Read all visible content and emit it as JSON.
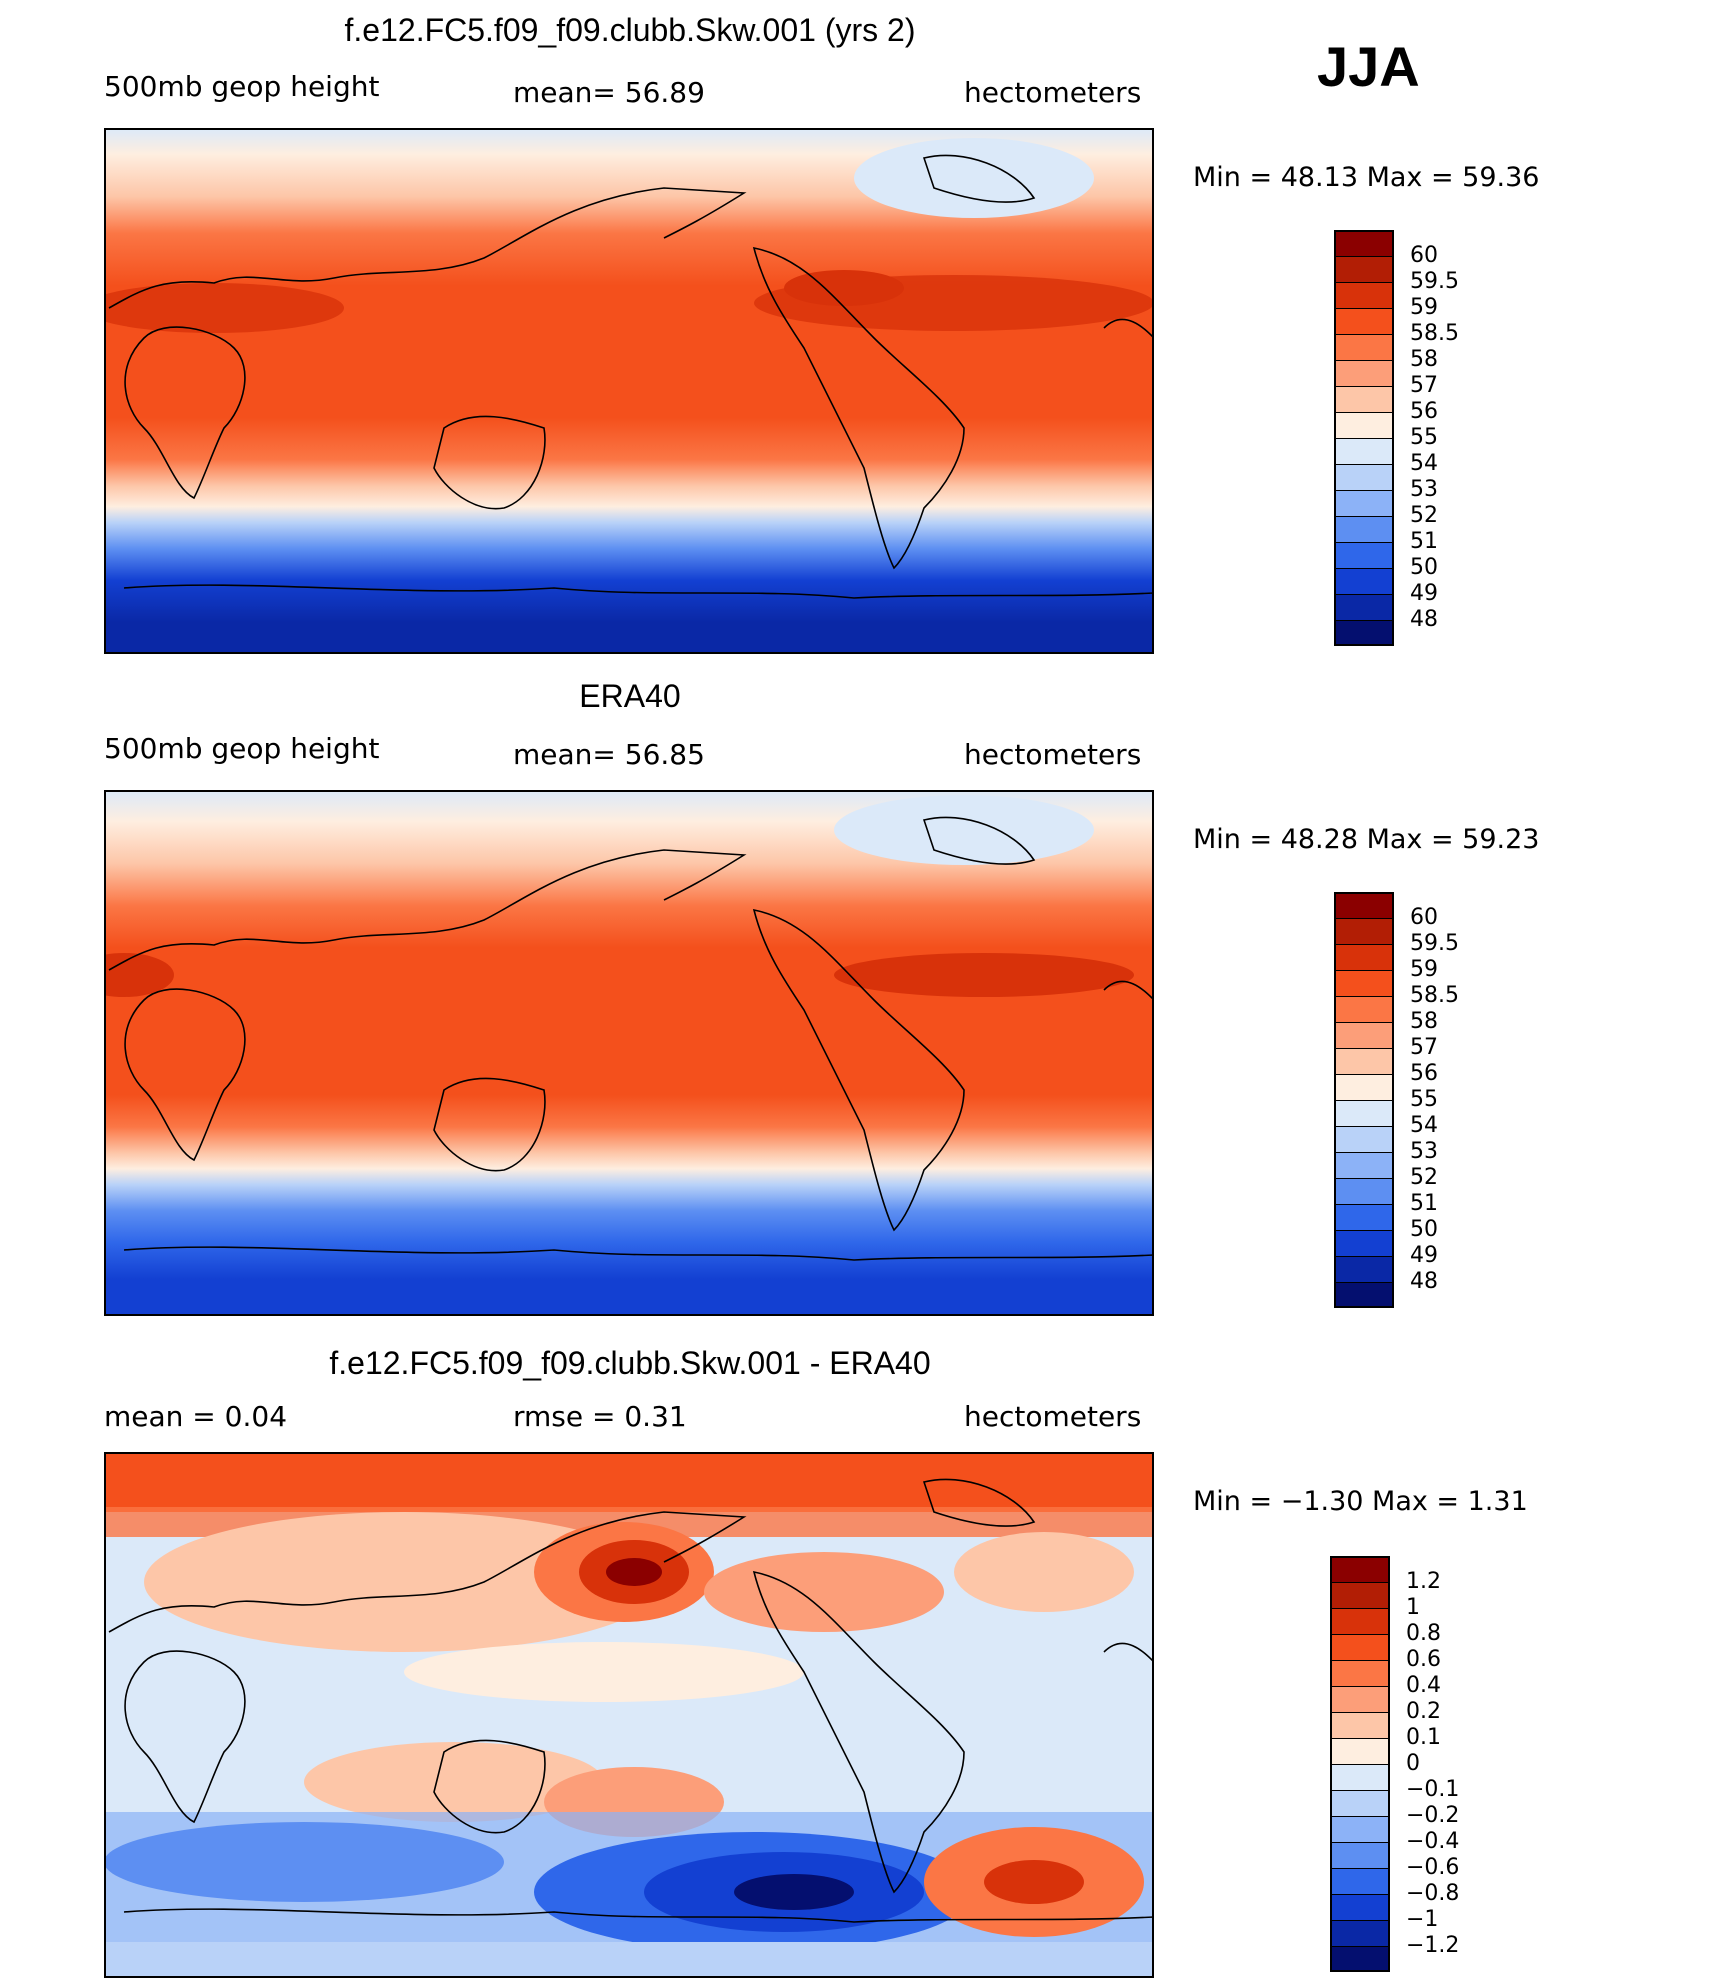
{
  "season": "JJA",
  "panels": [
    {
      "id": "model",
      "title": "f.e12.FC5.f09_f09.clubb.Skw.001 (yrs 2)",
      "left_label": "500mb geop height",
      "center_label": "mean=   56.89",
      "units": "hectometers",
      "minmax": "Min =   48.13 Max =   59.36",
      "colorbar_labels": [
        "60",
        "59.5",
        "59",
        "58.5",
        "58",
        "57",
        "56",
        "55",
        "54",
        "53",
        "52",
        "51",
        "50",
        "49",
        "48"
      ],
      "colorbar_colors": [
        "#8b0000",
        "#b21e05",
        "#d8320a",
        "#f4501c",
        "#fb7645",
        "#fc9e79",
        "#fdc6a8",
        "#feeee0",
        "#dbe9f9",
        "#b9d2f8",
        "#8cb2f7",
        "#5d8ff2",
        "#2f67ea",
        "#1340d2",
        "#0a28a6",
        "#040f6f"
      ]
    },
    {
      "id": "obs",
      "title": "ERA40",
      "left_label": "500mb geop height",
      "center_label": "mean=   56.85",
      "units": "hectometers",
      "minmax": "Min =   48.28 Max =   59.23",
      "colorbar_labels": [
        "60",
        "59.5",
        "59",
        "58.5",
        "58",
        "57",
        "56",
        "55",
        "54",
        "53",
        "52",
        "51",
        "50",
        "49",
        "48"
      ],
      "colorbar_colors": [
        "#8b0000",
        "#b21e05",
        "#d8320a",
        "#f4501c",
        "#fb7645",
        "#fc9e79",
        "#fdc6a8",
        "#feeee0",
        "#dbe9f9",
        "#b9d2f8",
        "#8cb2f7",
        "#5d8ff2",
        "#2f67ea",
        "#1340d2",
        "#0a28a6",
        "#040f6f"
      ]
    },
    {
      "id": "diff",
      "title": "f.e12.FC5.f09_f09.clubb.Skw.001 - ERA40",
      "left_label": "mean =     0.04",
      "center_label": "rmse =     0.31",
      "units": "hectometers",
      "minmax": "Min =   −1.30 Max =     1.31",
      "colorbar_labels": [
        "1.2",
        "1",
        "0.8",
        "0.6",
        "0.4",
        "0.2",
        "0.1",
        "0",
        "−0.1",
        "−0.2",
        "−0.4",
        "−0.6",
        "−0.8",
        "−1",
        "−1.2"
      ],
      "colorbar_colors": [
        "#8b0000",
        "#b21e05",
        "#d8320a",
        "#f4501c",
        "#fb7645",
        "#fc9e79",
        "#fdc6a8",
        "#feeee0",
        "#dbe9f9",
        "#b9d2f8",
        "#8cb2f7",
        "#5d8ff2",
        "#2f67ea",
        "#1340d2",
        "#0a28a6",
        "#040f6f"
      ]
    }
  ],
  "colors": {
    "deep_red": "#8b0000",
    "orange_red": "#f4501c",
    "pale": "#feeee0",
    "deep_blue": "#040f6f",
    "coastline": "#000000"
  }
}
